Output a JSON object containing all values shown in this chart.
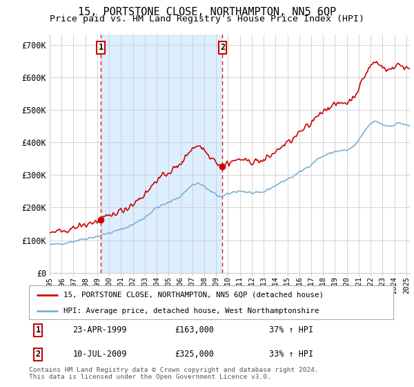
{
  "title": "15, PORTSTONE CLOSE, NORTHAMPTON, NN5 6QP",
  "subtitle": "Price paid vs. HM Land Registry's House Price Index (HPI)",
  "title_fontsize": 11,
  "subtitle_fontsize": 9.5,
  "ylabel_ticks": [
    "£0",
    "£100K",
    "£200K",
    "£300K",
    "£400K",
    "£500K",
    "£600K",
    "£700K"
  ],
  "ytick_values": [
    0,
    100000,
    200000,
    300000,
    400000,
    500000,
    600000,
    700000
  ],
  "ylim": [
    0,
    730000
  ],
  "xlim_start": 1995.0,
  "xlim_end": 2025.3,
  "sale1_year": 1999.31,
  "sale1_price": 163000,
  "sale2_year": 2009.54,
  "sale2_price": 325000,
  "sale1_date": "23-APR-1999",
  "sale1_pct": "37% ↑ HPI",
  "sale2_date": "10-JUL-2009",
  "sale2_pct": "33% ↑ HPI",
  "red_color": "#cc0000",
  "blue_color": "#7ab0d4",
  "shade_color": "#ddeeff",
  "grid_color": "#cccccc",
  "bg_color": "#ffffff",
  "legend_label_red": "15, PORTSTONE CLOSE, NORTHAMPTON, NN5 6QP (detached house)",
  "legend_label_blue": "HPI: Average price, detached house, West Northamptonshire",
  "footnote": "Contains HM Land Registry data © Crown copyright and database right 2024.\nThis data is licensed under the Open Government Licence v3.0.",
  "xtick_years": [
    1995,
    1996,
    1997,
    1998,
    1999,
    2000,
    2001,
    2002,
    2003,
    2004,
    2005,
    2006,
    2007,
    2008,
    2009,
    2010,
    2011,
    2012,
    2013,
    2014,
    2015,
    2016,
    2017,
    2018,
    2019,
    2020,
    2021,
    2022,
    2023,
    2024,
    2025
  ]
}
